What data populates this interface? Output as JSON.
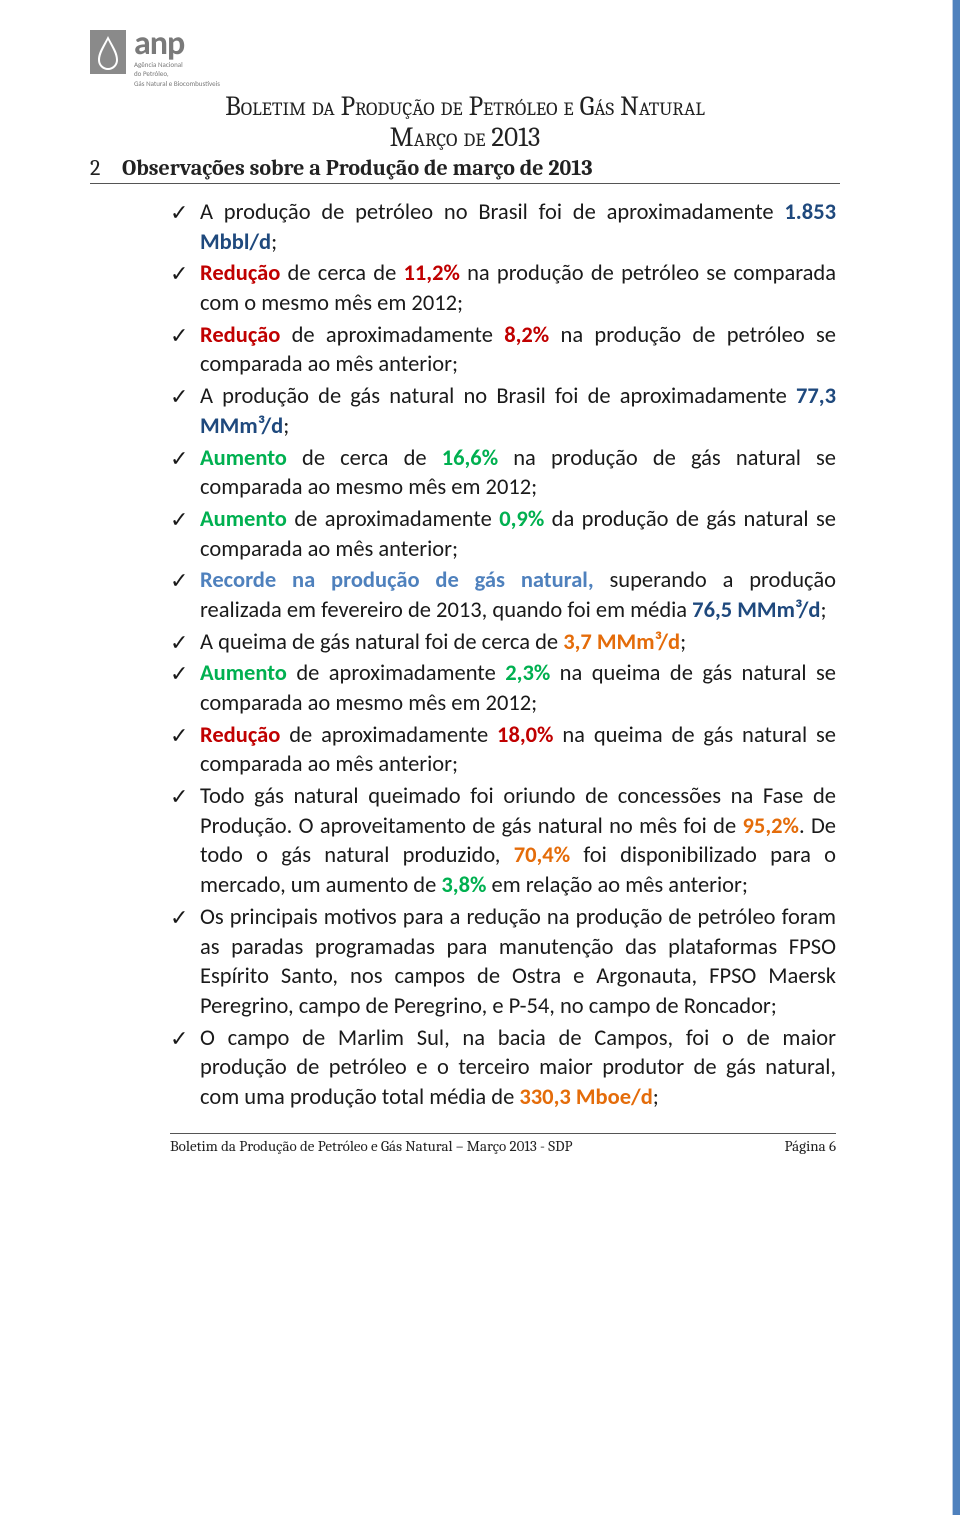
{
  "logo": {
    "acronym": "anp",
    "sub1": "Agência Nacional",
    "sub2": "do Petróleo,",
    "sub3": "Gás Natural e Biocombustíveis",
    "drop_fill": "#8a8a8a",
    "drop_stroke": "#8a8a8a"
  },
  "header": {
    "line1": "Boletim da Produção de Petróleo e Gás Natural",
    "line2": "Março de 2013"
  },
  "section": {
    "num": "2",
    "title": "Observações sobre a Produção de março de 2013"
  },
  "bullets": [
    {
      "segments": [
        {
          "text": "A produção de petróleo no Brasil foi de aproximadamente "
        },
        {
          "text": "1.853 Mbbl/d",
          "cls": "bold blue"
        },
        {
          "text": ";"
        }
      ]
    },
    {
      "segments": [
        {
          "text": "Redução",
          "cls": "bold red"
        },
        {
          "text": " de cerca de "
        },
        {
          "text": "11,2%",
          "cls": "bold red"
        },
        {
          "text": " na produção de petróleo se comparada com o mesmo mês em 2012;"
        }
      ]
    },
    {
      "segments": [
        {
          "text": "Redução",
          "cls": "bold red"
        },
        {
          "text": " de aproximadamente "
        },
        {
          "text": "8,2%",
          "cls": "bold red"
        },
        {
          "text": " na produção de petróleo se comparada ao mês anterior;"
        }
      ]
    },
    {
      "segments": [
        {
          "text": "A produção de gás natural no Brasil foi de aproximadamente "
        },
        {
          "text": "77,3 MMm³/d",
          "cls": "bold blue"
        },
        {
          "text": ";"
        }
      ]
    },
    {
      "segments": [
        {
          "text": "Aumento",
          "cls": "bold green"
        },
        {
          "text": " de cerca de "
        },
        {
          "text": "16,6%",
          "cls": "bold green"
        },
        {
          "text": " na produção de gás natural se comparada ao mesmo mês em 2012;"
        }
      ]
    },
    {
      "segments": [
        {
          "text": "Aumento",
          "cls": "bold green"
        },
        {
          "text": " de aproximadamente "
        },
        {
          "text": "0,9%",
          "cls": "bold green"
        },
        {
          "text": " da produção de gás natural se comparada ao mês anterior;"
        }
      ]
    },
    {
      "segments": [
        {
          "text": "Recorde na produção de gás natural,",
          "cls": "bold blue-mid"
        },
        {
          "text": " superando a produção realizada em fevereiro de 2013, quando foi em média "
        },
        {
          "text": "76,5 MMm³/d",
          "cls": "bold blue"
        },
        {
          "text": ";"
        }
      ]
    },
    {
      "segments": [
        {
          "text": "A queima de gás natural foi de cerca de "
        },
        {
          "text": "3,7 MMm³/d",
          "cls": "bold orange"
        },
        {
          "text": ";"
        }
      ]
    },
    {
      "segments": [
        {
          "text": "Aumento",
          "cls": "bold green"
        },
        {
          "text": " de aproximadamente "
        },
        {
          "text": "2,3%",
          "cls": "bold green"
        },
        {
          "text": " na queima de gás natural se comparada ao mesmo mês em 2012;"
        }
      ]
    },
    {
      "segments": [
        {
          "text": "Redução",
          "cls": "bold red"
        },
        {
          "text": " de aproximadamente "
        },
        {
          "text": "18,0%",
          "cls": "bold red"
        },
        {
          "text": " na queima de gás natural se comparada ao mês anterior;"
        }
      ]
    },
    {
      "segments": [
        {
          "text": "Todo gás natural queimado foi oriundo de concessões na Fase de Produção.  O aproveitamento de gás natural no mês foi de "
        },
        {
          "text": "95,2%",
          "cls": "bold orange"
        },
        {
          "text": ". De todo o gás natural produzido, "
        },
        {
          "text": "70,4%",
          "cls": "bold orange"
        },
        {
          "text": " foi disponibilizado para o mercado, um aumento de "
        },
        {
          "text": "3,8%",
          "cls": "bold green"
        },
        {
          "text": " em relação ao mês anterior;"
        }
      ]
    },
    {
      "segments": [
        {
          "text": "Os principais motivos para a redução na produção de petróleo foram as paradas programadas para manutenção das plataformas FPSO Espírito Santo, nos campos de Ostra e Argonauta, FPSO Maersk Peregrino, campo de Peregrino, e P-54, no campo de Roncador;"
        }
      ]
    },
    {
      "segments": [
        {
          "text": "O campo de Marlim Sul, na bacia de Campos, foi o de maior produção de petróleo e o terceiro maior produtor de gás natural, com uma produção total média de "
        },
        {
          "text": "330,3 Mboe/d",
          "cls": "bold orange"
        },
        {
          "text": ";"
        }
      ]
    }
  ],
  "footer": {
    "text": "Boletim da Produção de Petróleo e Gás Natural – Março 2013 - SDP",
    "page": "Página 6"
  },
  "colors": {
    "red": "#c00000",
    "green": "#00b050",
    "blue": "#1f497d",
    "orange": "#e46c0a",
    "blue_mid": "#4f81bd",
    "right_border": "#4f81bd"
  }
}
